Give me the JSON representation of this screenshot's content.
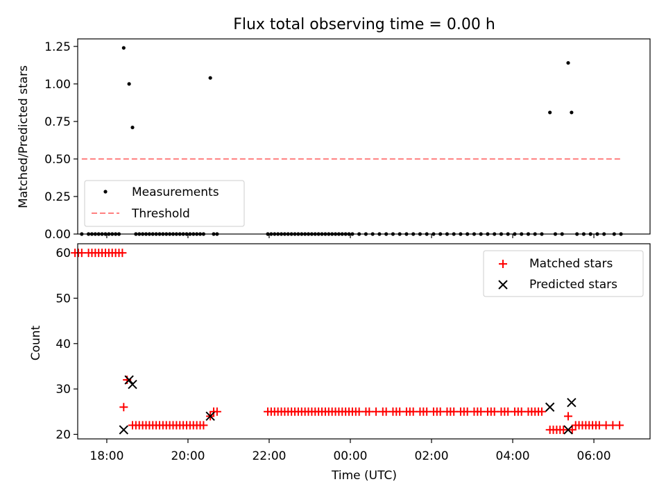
{
  "chart_data": [
    {
      "type": "scatter",
      "title": "Flux total observing time = 0.00 h",
      "xlabel": "",
      "ylabel": "Matched/Predicted stars",
      "xlim": [
        "17:17",
        "07:23"
      ],
      "ylim": [
        0,
        1.3
      ],
      "yticks": [
        0,
        0.25,
        0.5,
        0.75,
        1.0,
        1.25
      ],
      "ytick_labels": [
        "0.00",
        "0.25",
        "0.50",
        "0.75",
        "1.00",
        "1.25"
      ],
      "legend": {
        "position": "lower-left",
        "entries": [
          "Measurements",
          "Threshold"
        ]
      },
      "series": [
        {
          "name": "Measurements",
          "style": "dots",
          "color": "#000000",
          "points": [
            [
              "18:25",
              1.24
            ],
            [
              "18:33",
              1.0
            ],
            [
              "18:38",
              0.71
            ],
            [
              "20:33",
              1.04
            ],
            [
              "04:55",
              0.81
            ],
            [
              "05:22",
              1.14
            ],
            [
              "05:27",
              0.81
            ]
          ],
          "zero_points": [
            [
              "17:23",
              0
            ],
            [
              "17:33",
              0
            ],
            [
              "17:38",
              0
            ],
            [
              "17:43",
              0
            ],
            [
              "17:48",
              0
            ],
            [
              "17:53",
              0
            ],
            [
              "17:58",
              0
            ],
            [
              "18:03",
              0
            ],
            [
              "18:08",
              0
            ],
            [
              "18:13",
              0
            ],
            [
              "18:18",
              0
            ],
            [
              "18:43",
              0
            ],
            [
              "18:48",
              0
            ],
            [
              "18:53",
              0
            ],
            [
              "18:58",
              0
            ],
            [
              "19:03",
              0
            ],
            [
              "19:08",
              0
            ],
            [
              "19:13",
              0
            ],
            [
              "19:18",
              0
            ],
            [
              "19:23",
              0
            ],
            [
              "19:28",
              0
            ],
            [
              "19:33",
              0
            ],
            [
              "19:38",
              0
            ],
            [
              "19:43",
              0
            ],
            [
              "19:48",
              0
            ],
            [
              "19:53",
              0
            ],
            [
              "19:58",
              0
            ],
            [
              "20:03",
              0
            ],
            [
              "20:08",
              0
            ],
            [
              "20:13",
              0
            ],
            [
              "20:18",
              0
            ],
            [
              "20:23",
              0
            ],
            [
              "20:38",
              0
            ],
            [
              "20:43",
              0
            ],
            [
              "21:58",
              0
            ],
            [
              "22:03",
              0
            ],
            [
              "22:08",
              0
            ],
            [
              "22:13",
              0
            ],
            [
              "22:18",
              0
            ],
            [
              "22:23",
              0
            ],
            [
              "22:28",
              0
            ],
            [
              "22:33",
              0
            ],
            [
              "22:38",
              0
            ],
            [
              "22:43",
              0
            ],
            [
              "22:48",
              0
            ],
            [
              "22:53",
              0
            ],
            [
              "22:58",
              0
            ],
            [
              "23:03",
              0
            ],
            [
              "23:08",
              0
            ],
            [
              "23:13",
              0
            ],
            [
              "23:18",
              0
            ],
            [
              "23:23",
              0
            ],
            [
              "23:28",
              0
            ],
            [
              "23:33",
              0
            ],
            [
              "23:38",
              0
            ],
            [
              "23:43",
              0
            ],
            [
              "23:48",
              0
            ],
            [
              "23:53",
              0
            ],
            [
              "23:58",
              0
            ],
            [
              "00:03",
              0
            ],
            [
              "00:13",
              0
            ],
            [
              "00:23",
              0
            ],
            [
              "00:33",
              0
            ],
            [
              "00:43",
              0
            ],
            [
              "00:53",
              0
            ],
            [
              "01:03",
              0
            ],
            [
              "01:13",
              0
            ],
            [
              "01:23",
              0
            ],
            [
              "01:33",
              0
            ],
            [
              "01:43",
              0
            ],
            [
              "01:53",
              0
            ],
            [
              "02:03",
              0
            ],
            [
              "02:13",
              0
            ],
            [
              "02:23",
              0
            ],
            [
              "02:33",
              0
            ],
            [
              "02:43",
              0
            ],
            [
              "02:53",
              0
            ],
            [
              "03:03",
              0
            ],
            [
              "03:13",
              0
            ],
            [
              "03:23",
              0
            ],
            [
              "03:33",
              0
            ],
            [
              "03:43",
              0
            ],
            [
              "03:53",
              0
            ],
            [
              "04:03",
              0
            ],
            [
              "04:13",
              0
            ],
            [
              "04:23",
              0
            ],
            [
              "04:33",
              0
            ],
            [
              "04:43",
              0
            ],
            [
              "05:03",
              0
            ],
            [
              "05:13",
              0
            ],
            [
              "05:35",
              0
            ],
            [
              "05:45",
              0
            ],
            [
              "05:55",
              0
            ],
            [
              "06:05",
              0
            ],
            [
              "06:15",
              0
            ],
            [
              "06:30",
              0
            ],
            [
              "06:40",
              0
            ]
          ]
        },
        {
          "name": "Threshold",
          "style": "dashed-line",
          "color": "#ff7f7f",
          "points": [
            [
              "17:23",
              0.5
            ],
            [
              "06:40",
              0.5
            ]
          ]
        }
      ]
    },
    {
      "type": "scatter",
      "title": "",
      "xlabel": "Time (UTC)",
      "ylabel": "Count",
      "xlim": [
        "17:17",
        "07:23"
      ],
      "ylim": [
        19,
        62
      ],
      "yticks": [
        20,
        30,
        40,
        50,
        60
      ],
      "ytick_labels": [
        "20",
        "30",
        "40",
        "50",
        "60"
      ],
      "xticks": [
        "18:00",
        "20:00",
        "22:00",
        "00:00",
        "02:00",
        "04:00",
        "06:00"
      ],
      "legend": {
        "position": "top-right",
        "entries": [
          "Matched stars",
          "Predicted stars"
        ]
      },
      "series": [
        {
          "name": "Matched stars",
          "marker": "plus",
          "color": "#ff0000",
          "points": [
            [
              "17:13",
              60
            ],
            [
              "17:18",
              60
            ],
            [
              "17:23",
              60
            ],
            [
              "17:33",
              60
            ],
            [
              "17:38",
              60
            ],
            [
              "17:43",
              60
            ],
            [
              "17:48",
              60
            ],
            [
              "17:53",
              60
            ],
            [
              "17:58",
              60
            ],
            [
              "18:03",
              60
            ],
            [
              "18:08",
              60
            ],
            [
              "18:13",
              60
            ],
            [
              "18:18",
              60
            ],
            [
              "18:23",
              60
            ],
            [
              "18:25",
              26
            ],
            [
              "18:30",
              32
            ],
            [
              "18:38",
              22
            ],
            [
              "18:43",
              22
            ],
            [
              "18:48",
              22
            ],
            [
              "18:53",
              22
            ],
            [
              "18:58",
              22
            ],
            [
              "19:03",
              22
            ],
            [
              "19:08",
              22
            ],
            [
              "19:13",
              22
            ],
            [
              "19:18",
              22
            ],
            [
              "19:23",
              22
            ],
            [
              "19:28",
              22
            ],
            [
              "19:33",
              22
            ],
            [
              "19:38",
              22
            ],
            [
              "19:43",
              22
            ],
            [
              "19:48",
              22
            ],
            [
              "19:53",
              22
            ],
            [
              "19:58",
              22
            ],
            [
              "20:03",
              22
            ],
            [
              "20:08",
              22
            ],
            [
              "20:13",
              22
            ],
            [
              "20:18",
              22
            ],
            [
              "20:23",
              22
            ],
            [
              "20:33",
              24
            ],
            [
              "20:38",
              25
            ],
            [
              "20:43",
              25
            ],
            [
              "21:58",
              25
            ],
            [
              "22:03",
              25
            ],
            [
              "22:08",
              25
            ],
            [
              "22:13",
              25
            ],
            [
              "22:18",
              25
            ],
            [
              "22:23",
              25
            ],
            [
              "22:28",
              25
            ],
            [
              "22:33",
              25
            ],
            [
              "22:38",
              25
            ],
            [
              "22:43",
              25
            ],
            [
              "22:48",
              25
            ],
            [
              "22:53",
              25
            ],
            [
              "22:58",
              25
            ],
            [
              "23:03",
              25
            ],
            [
              "23:08",
              25
            ],
            [
              "23:13",
              25
            ],
            [
              "23:18",
              25
            ],
            [
              "23:23",
              25
            ],
            [
              "23:28",
              25
            ],
            [
              "23:33",
              25
            ],
            [
              "23:38",
              25
            ],
            [
              "23:43",
              25
            ],
            [
              "23:48",
              25
            ],
            [
              "23:53",
              25
            ],
            [
              "23:58",
              25
            ],
            [
              "00:03",
              25
            ],
            [
              "00:08",
              25
            ],
            [
              "00:13",
              25
            ],
            [
              "00:23",
              25
            ],
            [
              "00:28",
              25
            ],
            [
              "00:38",
              25
            ],
            [
              "00:48",
              25
            ],
            [
              "00:53",
              25
            ],
            [
              "01:03",
              25
            ],
            [
              "01:08",
              25
            ],
            [
              "01:13",
              25
            ],
            [
              "01:23",
              25
            ],
            [
              "01:28",
              25
            ],
            [
              "01:33",
              25
            ],
            [
              "01:43",
              25
            ],
            [
              "01:48",
              25
            ],
            [
              "01:53",
              25
            ],
            [
              "02:03",
              25
            ],
            [
              "02:08",
              25
            ],
            [
              "02:13",
              25
            ],
            [
              "02:23",
              25
            ],
            [
              "02:28",
              25
            ],
            [
              "02:33",
              25
            ],
            [
              "02:43",
              25
            ],
            [
              "02:48",
              25
            ],
            [
              "02:53",
              25
            ],
            [
              "03:03",
              25
            ],
            [
              "03:08",
              25
            ],
            [
              "03:13",
              25
            ],
            [
              "03:23",
              25
            ],
            [
              "03:28",
              25
            ],
            [
              "03:33",
              25
            ],
            [
              "03:43",
              25
            ],
            [
              "03:48",
              25
            ],
            [
              "03:53",
              25
            ],
            [
              "04:03",
              25
            ],
            [
              "04:08",
              25
            ],
            [
              "04:13",
              25
            ],
            [
              "04:23",
              25
            ],
            [
              "04:28",
              25
            ],
            [
              "04:33",
              25
            ],
            [
              "04:38",
              25
            ],
            [
              "04:43",
              25
            ],
            [
              "04:55",
              21
            ],
            [
              "05:00",
              21
            ],
            [
              "05:05",
              21
            ],
            [
              "05:10",
              21
            ],
            [
              "05:15",
              21
            ],
            [
              "05:22",
              24
            ],
            [
              "05:28",
              21
            ],
            [
              "05:33",
              22
            ],
            [
              "05:38",
              22
            ],
            [
              "05:43",
              22
            ],
            [
              "05:48",
              22
            ],
            [
              "05:53",
              22
            ],
            [
              "05:58",
              22
            ],
            [
              "06:03",
              22
            ],
            [
              "06:08",
              22
            ],
            [
              "06:18",
              22
            ],
            [
              "06:28",
              22
            ],
            [
              "06:38",
              22
            ]
          ]
        },
        {
          "name": "Predicted stars",
          "marker": "x",
          "color": "#000000",
          "points": [
            [
              "18:25",
              21
            ],
            [
              "18:33",
              32
            ],
            [
              "18:38",
              31
            ],
            [
              "20:33",
              24
            ],
            [
              "04:55",
              26
            ],
            [
              "05:22",
              21
            ],
            [
              "05:27",
              27
            ]
          ]
        }
      ]
    }
  ]
}
